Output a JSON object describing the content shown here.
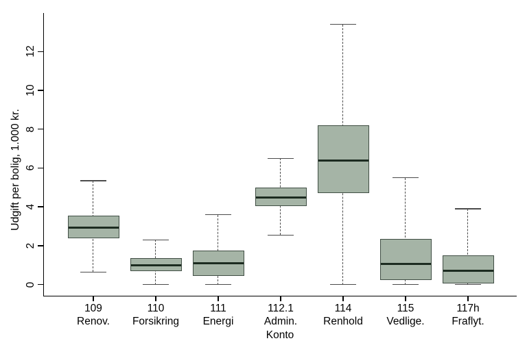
{
  "chart_data": {
    "type": "boxplot",
    "title": "",
    "xlabel": "Konto",
    "ylabel": "Udgift per bolig, 1.000 kr.",
    "ylim": [
      0,
      13.4
    ],
    "yticks": [
      0,
      2,
      4,
      6,
      8,
      10,
      12
    ],
    "grid": false,
    "legend": "none",
    "categories": [
      {
        "code": "109",
        "name": "Renov."
      },
      {
        "code": "110",
        "name": "Forsikring"
      },
      {
        "code": "111",
        "name": "Energi"
      },
      {
        "code": "112.1",
        "name": "Admin."
      },
      {
        "code": "114",
        "name": "Renhold"
      },
      {
        "code": "115",
        "name": "Vedlige."
      },
      {
        "code": "117h",
        "name": "Fraflyt."
      }
    ],
    "series": [
      {
        "category": "109 Renov.",
        "whisker_low": 0.65,
        "q1": 2.4,
        "median": 2.95,
        "q3": 3.55,
        "whisker_high": 5.35
      },
      {
        "category": "110 Forsikring",
        "whisker_low": 0.0,
        "q1": 0.7,
        "median": 1.0,
        "q3": 1.35,
        "whisker_high": 2.3
      },
      {
        "category": "111 Energi",
        "whisker_low": 0.0,
        "q1": 0.45,
        "median": 1.1,
        "q3": 1.75,
        "whisker_high": 3.6
      },
      {
        "category": "112.1 Admin.",
        "whisker_low": 2.55,
        "q1": 4.05,
        "median": 4.5,
        "q3": 5.0,
        "whisker_high": 6.5
      },
      {
        "category": "114 Renhold",
        "whisker_low": 0.0,
        "q1": 4.7,
        "median": 6.4,
        "q3": 8.2,
        "whisker_high": 13.4
      },
      {
        "category": "115 Vedlige.",
        "whisker_low": 0.0,
        "q1": 0.25,
        "median": 1.05,
        "q3": 2.35,
        "whisker_high": 5.5
      },
      {
        "category": "117h Fraflyt.",
        "whisker_low": 0.0,
        "q1": 0.05,
        "median": 0.7,
        "q3": 1.5,
        "whisker_high": 3.9
      }
    ],
    "colors": {
      "box_fill": "#a5b4a6",
      "box_border": "#3f4d43",
      "median": "#1c2b20",
      "whisker": "#4a4a4a",
      "axis": "#000000",
      "background": "#ffffff"
    }
  }
}
